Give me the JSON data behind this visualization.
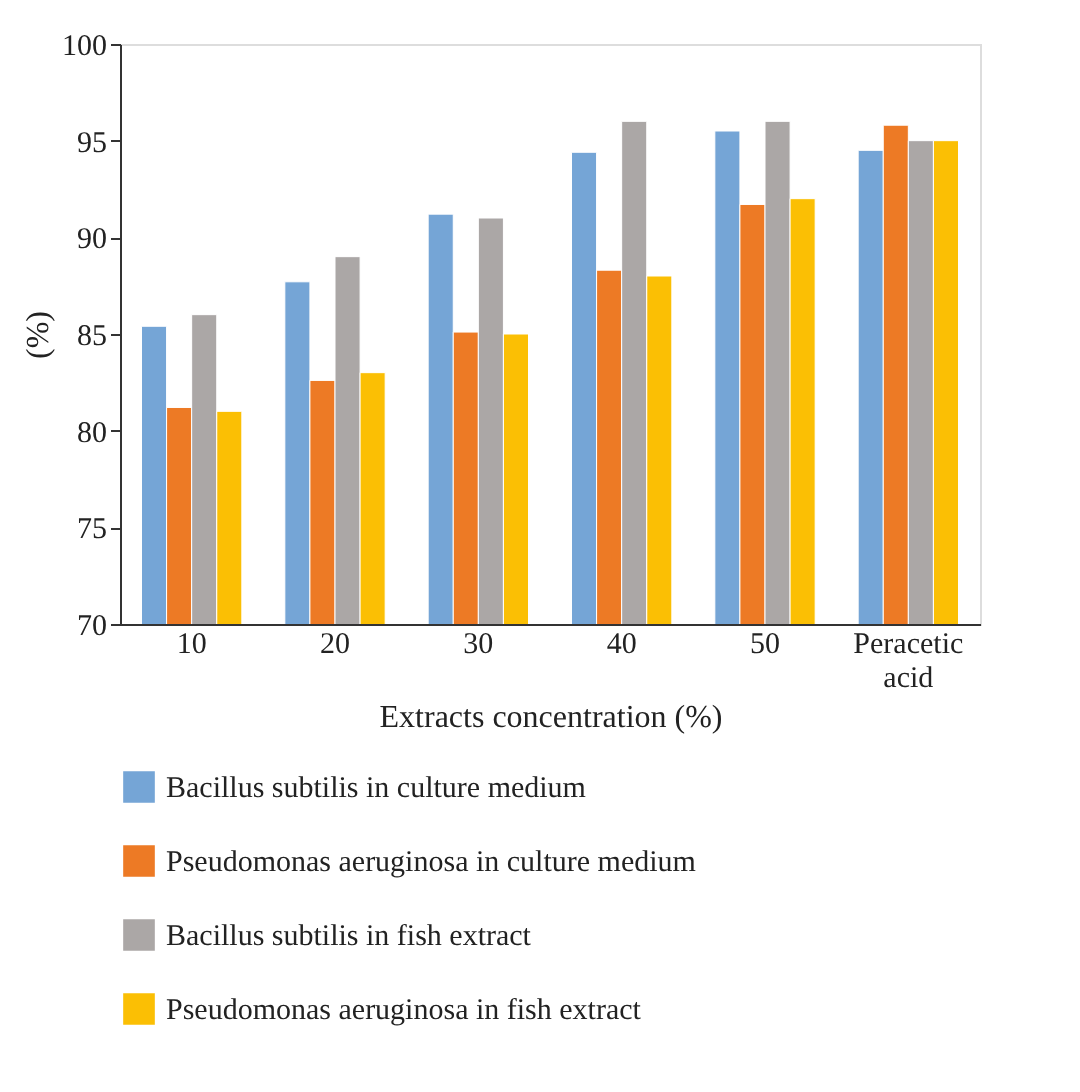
{
  "chart_data": {
    "type": "bar",
    "xlabel": "Extracts concentration (%)",
    "ylabel": "(%)",
    "categories": [
      "10",
      "20",
      "30",
      "40",
      "50",
      "Peracetic acid"
    ],
    "series": [
      {
        "name": "Bacillus subtilis in culture medium",
        "color": "#75a5d6",
        "values": [
          85.4,
          87.7,
          91.2,
          94.4,
          95.5,
          94.5
        ]
      },
      {
        "name": "Pseudomonas aeruginosa in culture medium",
        "color": "#ed7a25",
        "values": [
          81.2,
          82.6,
          85.1,
          88.3,
          91.7,
          95.8
        ]
      },
      {
        "name": "Bacillus subtilis in fish extract",
        "color": "#aba7a6",
        "values": [
          86,
          89,
          91,
          96,
          96,
          95
        ]
      },
      {
        "name": "Pseudomonas aeruginosa in fish extract",
        "color": "#fbbf04",
        "values": [
          81,
          83,
          85,
          88,
          92,
          95
        ]
      }
    ],
    "ylim": [
      70,
      100
    ],
    "yticks": [
      70,
      75,
      80,
      85,
      90,
      95,
      100
    ],
    "grid": false,
    "legend": "bottom"
  }
}
